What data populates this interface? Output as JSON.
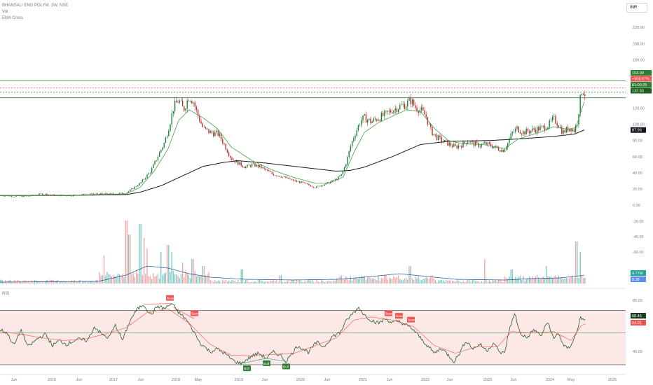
{
  "header": {
    "symbol": "BHANSALI ENG POLYM, 1W, NSE",
    "vol_label": "Vol",
    "ema_label": "EMA Cross",
    "currency": "INR"
  },
  "rsi_panel": {
    "label": "RSI"
  },
  "chart_data": [
    {
      "type": "candlestick",
      "x_axis_labels": [
        "Jun",
        "2016",
        "Jun",
        "2017",
        "Jun",
        "2018",
        "May",
        "2019",
        "Jun",
        "2020",
        "Jun",
        "2021",
        "Jun",
        "2022",
        "Jun",
        "2023",
        "Jun",
        "2024",
        "May",
        "2025"
      ],
      "y_ticks": [
        "220.00",
        "200.00",
        "180.00",
        "160.00",
        "140.00",
        "120.00",
        "100.00",
        "80.00",
        "60.00",
        "40.00",
        "20.00",
        "0.00"
      ],
      "ylim": [
        0,
        228
      ],
      "anchor_closes": [
        [
          0,
          12
        ],
        [
          20,
          11
        ],
        [
          40,
          11
        ],
        [
          60,
          14
        ],
        [
          80,
          12
        ],
        [
          100,
          12
        ],
        [
          120,
          13
        ],
        [
          140,
          14
        ],
        [
          160,
          14
        ],
        [
          180,
          15
        ],
        [
          185,
          18
        ],
        [
          200,
          27
        ],
        [
          215,
          42
        ],
        [
          225,
          60
        ],
        [
          235,
          78
        ],
        [
          242,
          100
        ],
        [
          248,
          122
        ],
        [
          255,
          130
        ],
        [
          262,
          118
        ],
        [
          270,
          135
        ],
        [
          276,
          128
        ],
        [
          282,
          112
        ],
        [
          290,
          95
        ],
        [
          300,
          90
        ],
        [
          312,
          88
        ],
        [
          320,
          75
        ],
        [
          330,
          58
        ],
        [
          340,
          52
        ],
        [
          350,
          47
        ],
        [
          360,
          50
        ],
        [
          370,
          48
        ],
        [
          380,
          43
        ],
        [
          390,
          38
        ],
        [
          400,
          36
        ],
        [
          410,
          33
        ],
        [
          420,
          30
        ],
        [
          430,
          28
        ],
        [
          440,
          25
        ],
        [
          450,
          22
        ],
        [
          460,
          25
        ],
        [
          470,
          28
        ],
        [
          480,
          32
        ],
        [
          488,
          38
        ],
        [
          495,
          55
        ],
        [
          500,
          72
        ],
        [
          505,
          85
        ],
        [
          510,
          95
        ],
        [
          515,
          105
        ],
        [
          520,
          108
        ],
        [
          530,
          103
        ],
        [
          540,
          108
        ],
        [
          550,
          112
        ],
        [
          560,
          118
        ],
        [
          570,
          122
        ],
        [
          580,
          125
        ],
        [
          586,
          130
        ],
        [
          592,
          122
        ],
        [
          600,
          118
        ],
        [
          608,
          110
        ],
        [
          615,
          92
        ],
        [
          622,
          85
        ],
        [
          630,
          80
        ],
        [
          640,
          76
        ],
        [
          650,
          72
        ],
        [
          660,
          75
        ],
        [
          668,
          80
        ],
        [
          676,
          76
        ],
        [
          684,
          74
        ],
        [
          692,
          76
        ],
        [
          700,
          74
        ],
        [
          710,
          70
        ],
        [
          718,
          68
        ],
        [
          724,
          75
        ],
        [
          730,
          88
        ],
        [
          738,
          95
        ],
        [
          746,
          90
        ],
        [
          756,
          92
        ],
        [
          766,
          94
        ],
        [
          776,
          96
        ],
        [
          784,
          100
        ],
        [
          790,
          107
        ],
        [
          797,
          100
        ],
        [
          803,
          90
        ],
        [
          808,
          93
        ],
        [
          814,
          96
        ],
        [
          820,
          92
        ],
        [
          824,
          104
        ],
        [
          828,
          130
        ],
        [
          831,
          145
        ],
        [
          834,
          138
        ]
      ],
      "ema_fast_anchors": [
        [
          0,
          12
        ],
        [
          100,
          12
        ],
        [
          180,
          14
        ],
        [
          200,
          22
        ],
        [
          220,
          42
        ],
        [
          240,
          70
        ],
        [
          255,
          105
        ],
        [
          270,
          118
        ],
        [
          290,
          108
        ],
        [
          310,
          95
        ],
        [
          330,
          72
        ],
        [
          360,
          55
        ],
        [
          390,
          43
        ],
        [
          420,
          34
        ],
        [
          450,
          27
        ],
        [
          470,
          27
        ],
        [
          490,
          35
        ],
        [
          505,
          65
        ],
        [
          520,
          90
        ],
        [
          540,
          102
        ],
        [
          560,
          110
        ],
        [
          580,
          118
        ],
        [
          600,
          116
        ],
        [
          620,
          95
        ],
        [
          640,
          80
        ],
        [
          660,
          76
        ],
        [
          690,
          75
        ],
        [
          720,
          70
        ],
        [
          740,
          82
        ],
        [
          770,
          90
        ],
        [
          790,
          97
        ],
        [
          810,
          94
        ],
        [
          822,
          96
        ],
        [
          830,
          118
        ],
        [
          834,
          128
        ]
      ],
      "ema_slow_anchors": [
        [
          0,
          12
        ],
        [
          100,
          12
        ],
        [
          180,
          13
        ],
        [
          200,
          16
        ],
        [
          230,
          24
        ],
        [
          260,
          36
        ],
        [
          290,
          48
        ],
        [
          320,
          53
        ],
        [
          340,
          55
        ],
        [
          380,
          52
        ],
        [
          420,
          48
        ],
        [
          460,
          44
        ],
        [
          480,
          42
        ],
        [
          500,
          43
        ],
        [
          520,
          47
        ],
        [
          560,
          60
        ],
        [
          600,
          75
        ],
        [
          640,
          79
        ],
        [
          700,
          80
        ],
        [
          740,
          82
        ],
        [
          790,
          85
        ],
        [
          820,
          88
        ],
        [
          834,
          93
        ]
      ],
      "price_levels": [
        {
          "value": 153.99,
          "color": "#2e7d32",
          "label": "153.99"
        },
        {
          "value": 145,
          "color": "#ef5350",
          "label": "+908.67%"
        },
        {
          "value": 140,
          "color": "#2e7d32",
          "label": "01:00:25"
        },
        {
          "value": 132.83,
          "color": "#1b5e20",
          "label": "132.83"
        }
      ],
      "ema_last_label": "87.96"
    },
    {
      "type": "bar",
      "name": "Vol",
      "ylim": [
        0,
        100
      ],
      "y_ticks": [
        "-20.00",
        "-40.00",
        "-60.00"
      ],
      "value_labels": [
        "9.77M",
        "8.38"
      ],
      "spike_bars": [
        [
          180,
          90
        ],
        [
          185,
          70
        ],
        [
          200,
          85
        ],
        [
          205,
          65
        ],
        [
          210,
          50
        ],
        [
          148,
          40
        ],
        [
          240,
          55
        ],
        [
          230,
          45
        ],
        [
          245,
          45
        ],
        [
          260,
          30
        ],
        [
          275,
          35
        ],
        [
          290,
          25
        ],
        [
          345,
          20
        ],
        [
          400,
          12
        ],
        [
          500,
          10
        ],
        [
          550,
          12
        ],
        [
          585,
          25
        ],
        [
          692,
          35
        ],
        [
          730,
          20
        ],
        [
          780,
          25
        ],
        [
          823,
          60
        ],
        [
          828,
          45
        ]
      ]
    },
    {
      "type": "line",
      "name": "RSI",
      "ylim": [
        0,
        100
      ],
      "y_ticks": [
        "80.00",
        "60.00",
        "40.00"
      ],
      "upper_band": 85,
      "mid_line": 50,
      "lower_band": 0,
      "anchors": [
        [
          0,
          55
        ],
        [
          10,
          50
        ],
        [
          20,
          30
        ],
        [
          30,
          55
        ],
        [
          40,
          28
        ],
        [
          55,
          42
        ],
        [
          65,
          48
        ],
        [
          75,
          30
        ],
        [
          85,
          38
        ],
        [
          95,
          32
        ],
        [
          110,
          40
        ],
        [
          125,
          38
        ],
        [
          135,
          60
        ],
        [
          145,
          48
        ],
        [
          155,
          42
        ],
        [
          165,
          62
        ],
        [
          175,
          38
        ],
        [
          185,
          68
        ],
        [
          195,
          86
        ],
        [
          205,
          95
        ],
        [
          215,
          78
        ],
        [
          225,
          92
        ],
        [
          235,
          88
        ],
        [
          245,
          96
        ],
        [
          255,
          82
        ],
        [
          265,
          72
        ],
        [
          275,
          55
        ],
        [
          285,
          35
        ],
        [
          300,
          20
        ],
        [
          310,
          25
        ],
        [
          320,
          18
        ],
        [
          335,
          5
        ],
        [
          345,
          2
        ],
        [
          352,
          8
        ],
        [
          360,
          14
        ],
        [
          370,
          18
        ],
        [
          380,
          10
        ],
        [
          390,
          20
        ],
        [
          400,
          15
        ],
        [
          408,
          5
        ],
        [
          415,
          15
        ],
        [
          425,
          30
        ],
        [
          440,
          20
        ],
        [
          452,
          35
        ],
        [
          462,
          28
        ],
        [
          475,
          45
        ],
        [
          485,
          50
        ],
        [
          495,
          70
        ],
        [
          505,
          82
        ],
        [
          512,
          90
        ],
        [
          520,
          78
        ],
        [
          530,
          70
        ],
        [
          540,
          65
        ],
        [
          550,
          72
        ],
        [
          560,
          66
        ],
        [
          570,
          68
        ],
        [
          580,
          62
        ],
        [
          590,
          55
        ],
        [
          600,
          42
        ],
        [
          610,
          30
        ],
        [
          620,
          18
        ],
        [
          630,
          26
        ],
        [
          640,
          15
        ],
        [
          648,
          5
        ],
        [
          656,
          18
        ],
        [
          665,
          38
        ],
        [
          675,
          25
        ],
        [
          685,
          32
        ],
        [
          695,
          22
        ],
        [
          705,
          35
        ],
        [
          712,
          20
        ],
        [
          720,
          18
        ],
        [
          728,
          60
        ],
        [
          735,
          80
        ],
        [
          742,
          50
        ],
        [
          752,
          42
        ],
        [
          762,
          55
        ],
        [
          772,
          45
        ],
        [
          782,
          68
        ],
        [
          790,
          40
        ],
        [
          797,
          50
        ],
        [
          805,
          28
        ],
        [
          812,
          26
        ],
        [
          818,
          38
        ],
        [
          825,
          55
        ],
        [
          828,
          78
        ],
        [
          832,
          70
        ],
        [
          836,
          68
        ]
      ],
      "ma_anchors": [
        [
          0,
          52
        ],
        [
          30,
          48
        ],
        [
          60,
          42
        ],
        [
          90,
          38
        ],
        [
          120,
          40
        ],
        [
          150,
          48
        ],
        [
          180,
          58
        ],
        [
          210,
          82
        ],
        [
          240,
          88
        ],
        [
          270,
          65
        ],
        [
          300,
          32
        ],
        [
          330,
          15
        ],
        [
          360,
          14
        ],
        [
          390,
          16
        ],
        [
          420,
          18
        ],
        [
          450,
          30
        ],
        [
          480,
          42
        ],
        [
          505,
          70
        ],
        [
          530,
          75
        ],
        [
          560,
          70
        ],
        [
          590,
          60
        ],
        [
          620,
          30
        ],
        [
          650,
          18
        ],
        [
          680,
          28
        ],
        [
          710,
          28
        ],
        [
          730,
          52
        ],
        [
          760,
          50
        ],
        [
          790,
          52
        ],
        [
          815,
          38
        ],
        [
          830,
          62
        ],
        [
          836,
          64
        ]
      ],
      "value_labels": [
        "68.46",
        "64.01"
      ],
      "signals": [
        {
          "label": "Bear",
          "type": "bear",
          "x": 242,
          "level": 96
        },
        {
          "label": "Bear",
          "type": "bear",
          "x": 277,
          "level": 72
        },
        {
          "label": "Bear",
          "type": "bear",
          "x": 554,
          "level": 72
        },
        {
          "label": "Bear",
          "type": "bear",
          "x": 569,
          "level": 68
        },
        {
          "label": "Bear",
          "type": "bear",
          "x": 586,
          "level": 62
        },
        {
          "label": "Bull",
          "type": "bull",
          "x": 352,
          "level": 2
        },
        {
          "label": "Bull",
          "type": "bull",
          "x": 380,
          "level": 10
        },
        {
          "label": "Bull",
          "type": "bull",
          "x": 408,
          "level": 5
        }
      ]
    }
  ],
  "colors": {
    "up": "#26a69a",
    "down": "#ef5350",
    "up_candle": "#1b7f3a",
    "down_candle": "#c62828",
    "ema_fast": "#43a047",
    "ema_slow": "#1a1a1a",
    "rsi": "#1b5e20",
    "rsi_ma": "#ef5350",
    "rsi_band_fill": "#fde8e8",
    "vol_up": "#80cbc4",
    "vol_down": "#f4a9a8",
    "vol_ma": "#1e4f9a",
    "axis_text": "#787b86",
    "grid": "#f0f3fa"
  }
}
